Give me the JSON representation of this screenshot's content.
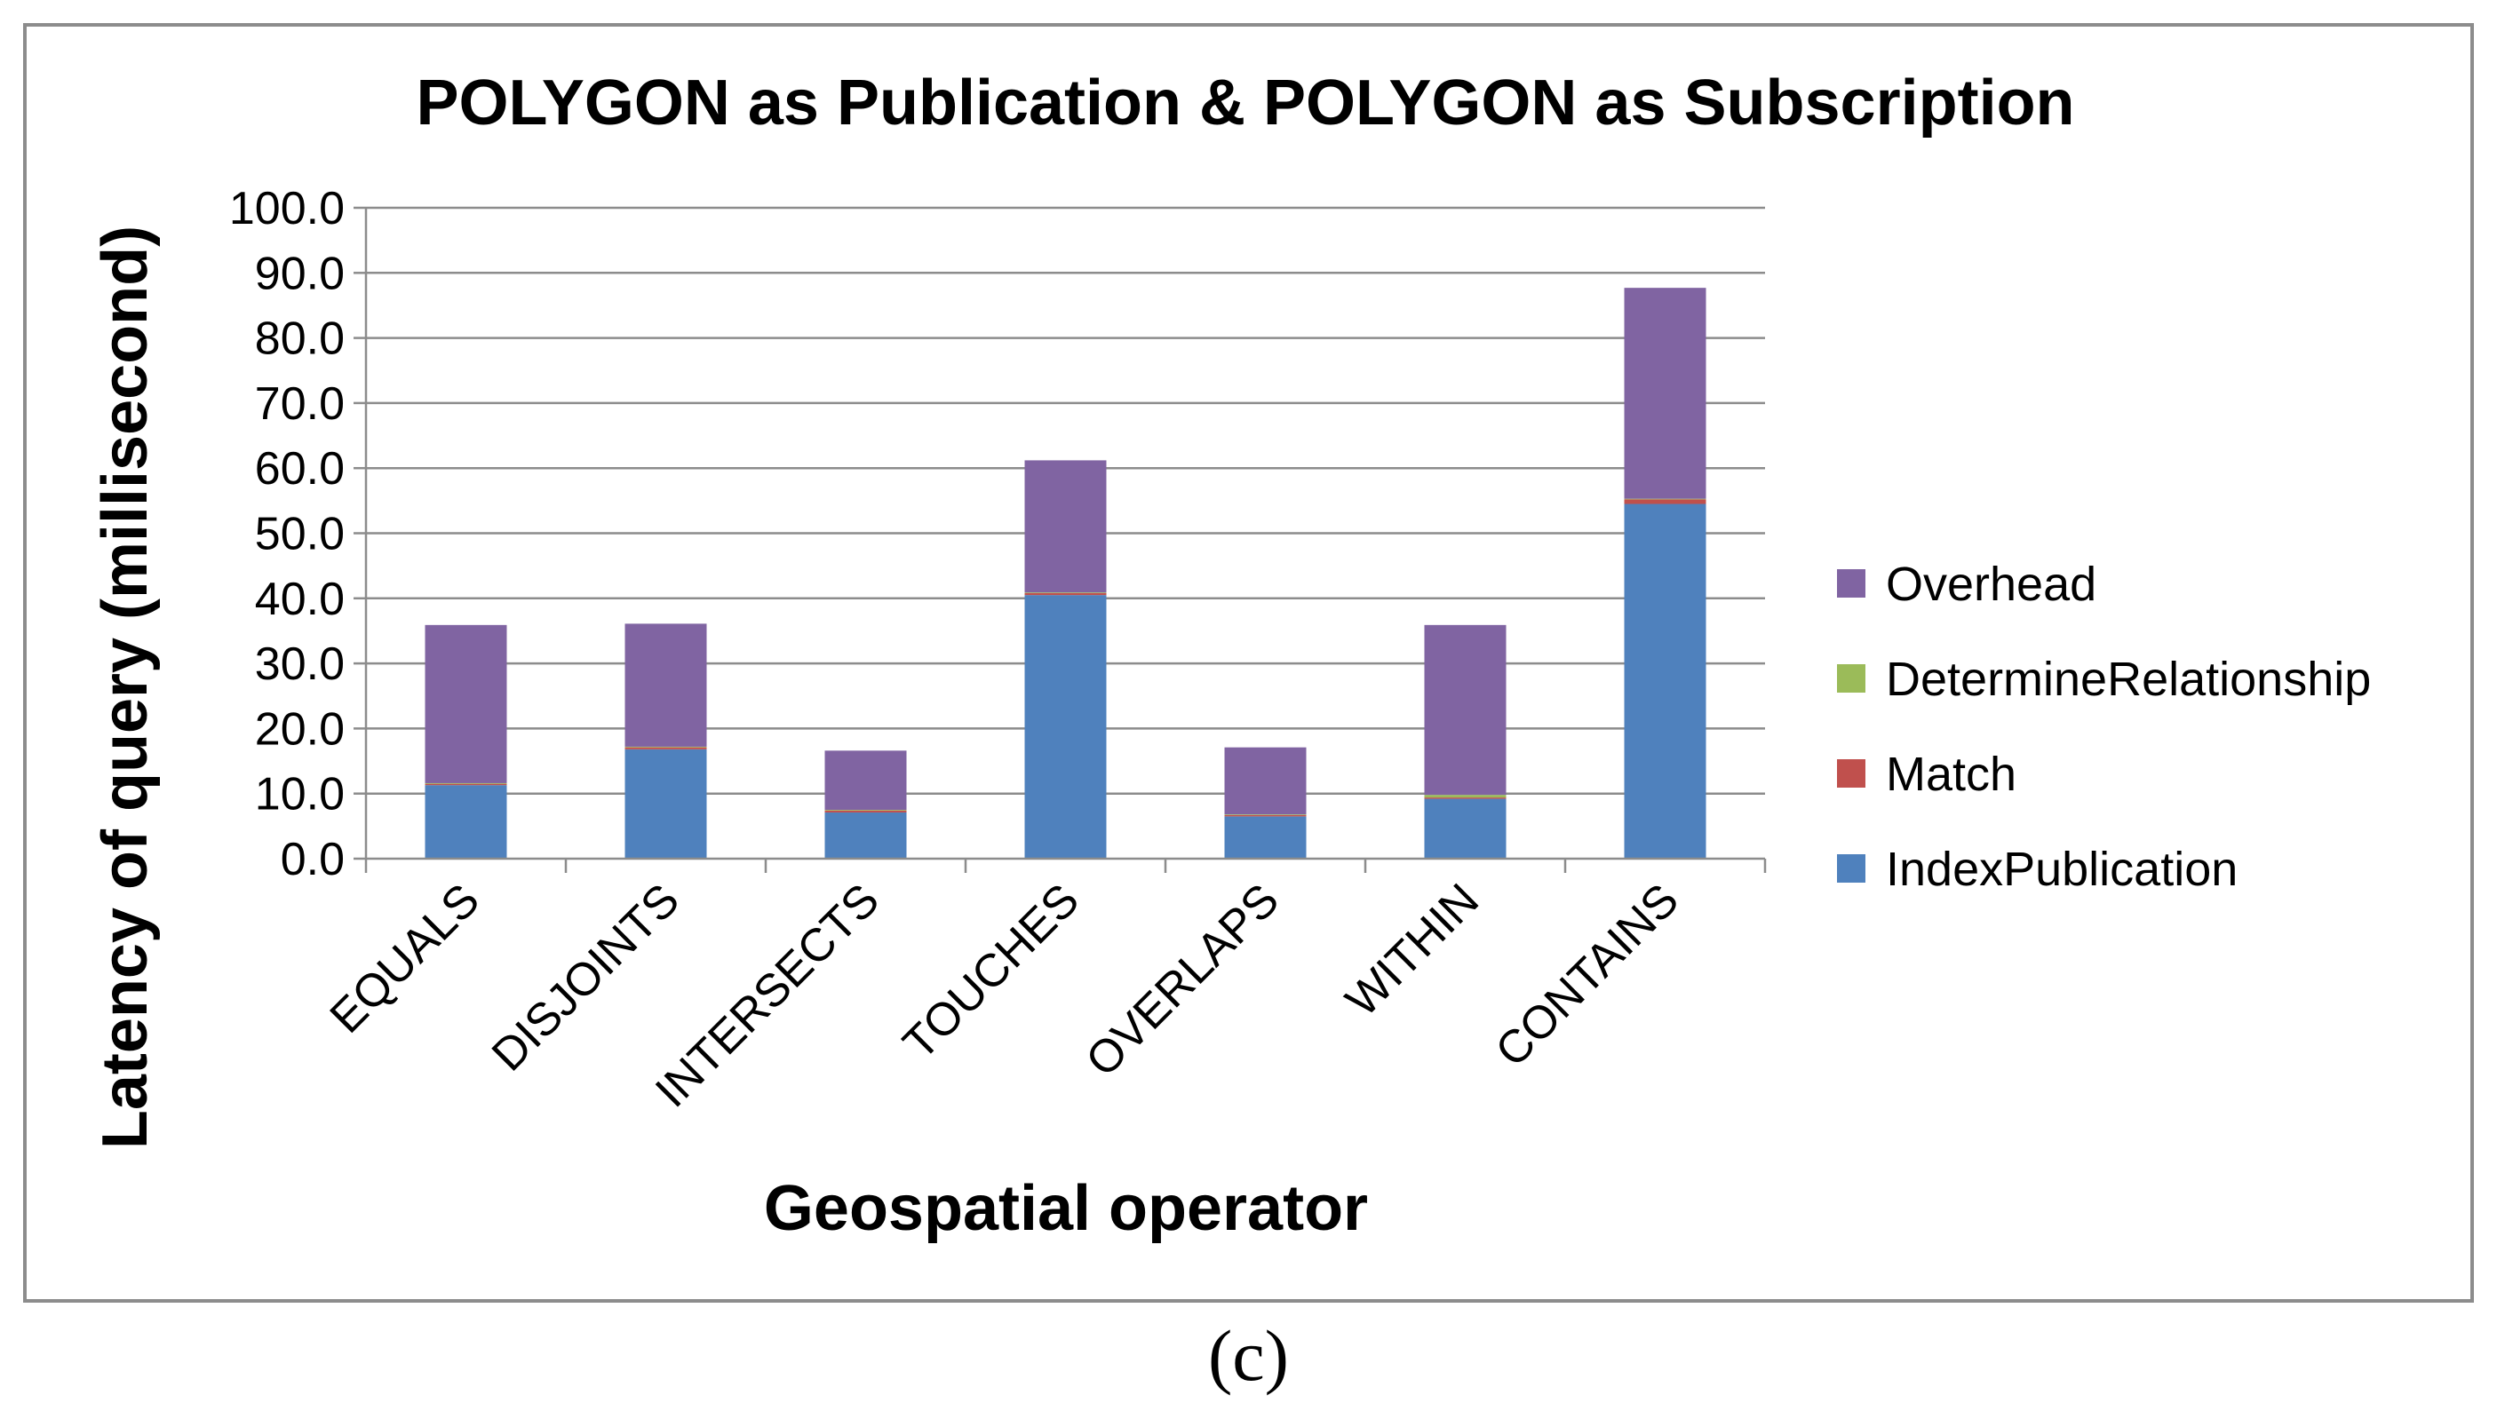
{
  "caption": "(c)",
  "chart_data": {
    "type": "bar",
    "stacked": true,
    "title": "POLYGON as Publication & POLYGON as Subscription",
    "xlabel": "Geospatial operator",
    "ylabel": "Latency of query (millisecond)",
    "ylim": [
      0,
      100
    ],
    "ytick_step": 10,
    "ytick_labels": [
      "0.0",
      "10.0",
      "20.0",
      "30.0",
      "40.0",
      "50.0",
      "60.0",
      "70.0",
      "80.0",
      "90.0",
      "100.0"
    ],
    "grid": true,
    "legend_position": "right",
    "legend_order": [
      "Overhead",
      "DetermineRelationship",
      "Match",
      "IndexPublication"
    ],
    "categories": [
      "EQUALS",
      "DISJOINTS",
      "INTERSECTS",
      "TOUCHES",
      "OVERLAPS",
      "WITHIN",
      "CONTAINS"
    ],
    "series": [
      {
        "name": "IndexPublication",
        "color": "#4F81BD",
        "values": [
          11.3,
          16.8,
          7.1,
          40.5,
          6.5,
          9.2,
          54.5
        ]
      },
      {
        "name": "Match",
        "color": "#C0504D",
        "values": [
          0.2,
          0.3,
          0.3,
          0.3,
          0.2,
          0.2,
          0.7
        ]
      },
      {
        "name": "DetermineRelationship",
        "color": "#9BBB59",
        "values": [
          0.1,
          0.1,
          0.1,
          0.1,
          0.1,
          0.4,
          0.1
        ]
      },
      {
        "name": "Overhead",
        "color": "#8064A2",
        "values": [
          24.3,
          18.9,
          9.1,
          20.3,
          10.3,
          26.1,
          32.4
        ]
      }
    ]
  }
}
